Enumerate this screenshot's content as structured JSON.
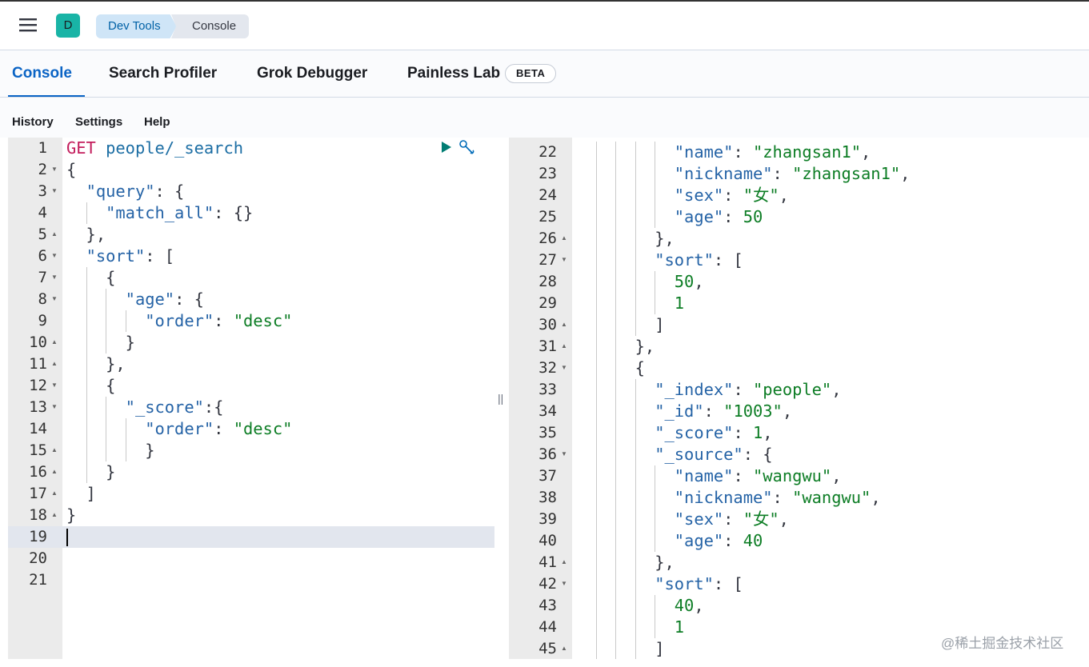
{
  "header": {
    "avatar": "D",
    "breadcrumbs": [
      "Dev Tools",
      "Console"
    ]
  },
  "tabs": {
    "items": [
      "Console",
      "Search Profiler",
      "Grok Debugger",
      "Painless Lab"
    ],
    "badge": "BETA",
    "active": 0
  },
  "menu": [
    "History",
    "Settings",
    "Help"
  ],
  "request": {
    "lines": [
      {
        "n": 1,
        "text": "GET people/_search"
      },
      {
        "n": 2,
        "text": "{",
        "fold": "open"
      },
      {
        "n": 3,
        "text": "  \"query\": {",
        "fold": "open"
      },
      {
        "n": 4,
        "text": "    \"match_all\": {}"
      },
      {
        "n": 5,
        "text": "  },",
        "fold": "close"
      },
      {
        "n": 6,
        "text": "  \"sort\": [",
        "fold": "open"
      },
      {
        "n": 7,
        "text": "    {",
        "fold": "open"
      },
      {
        "n": 8,
        "text": "      \"age\": {",
        "fold": "open"
      },
      {
        "n": 9,
        "text": "        \"order\": \"desc\""
      },
      {
        "n": 10,
        "text": "      }",
        "fold": "close"
      },
      {
        "n": 11,
        "text": "    },",
        "fold": "close"
      },
      {
        "n": 12,
        "text": "    {",
        "fold": "open"
      },
      {
        "n": 13,
        "text": "      \"_score\":{",
        "fold": "open"
      },
      {
        "n": 14,
        "text": "        \"order\": \"desc\""
      },
      {
        "n": 15,
        "text": "        }",
        "fold": "close"
      },
      {
        "n": 16,
        "text": "    }",
        "fold": "close"
      },
      {
        "n": 17,
        "text": "  ]",
        "fold": "close"
      },
      {
        "n": 18,
        "text": "}",
        "fold": "close"
      },
      {
        "n": 19,
        "active": true
      },
      {
        "n": 20
      },
      {
        "n": 21
      }
    ]
  },
  "response": {
    "lines": [
      {
        "n": 22,
        "text": "          \"name\": \"zhangsan1\","
      },
      {
        "n": 23,
        "text": "          \"nickname\": \"zhangsan1\","
      },
      {
        "n": 24,
        "text": "          \"sex\": \"女\","
      },
      {
        "n": 25,
        "text": "          \"age\": 50"
      },
      {
        "n": 26,
        "text": "        },",
        "fold": "close"
      },
      {
        "n": 27,
        "text": "        \"sort\": [",
        "fold": "open"
      },
      {
        "n": 28,
        "text": "          50,"
      },
      {
        "n": 29,
        "text": "          1"
      },
      {
        "n": 30,
        "text": "        ]",
        "fold": "close"
      },
      {
        "n": 31,
        "text": "      },",
        "fold": "close"
      },
      {
        "n": 32,
        "text": "      {",
        "fold": "open"
      },
      {
        "n": 33,
        "text": "        \"_index\": \"people\","
      },
      {
        "n": 34,
        "text": "        \"_id\": \"1003\","
      },
      {
        "n": 35,
        "text": "        \"_score\": 1,"
      },
      {
        "n": 36,
        "text": "        \"_source\": {",
        "fold": "open"
      },
      {
        "n": 37,
        "text": "          \"name\": \"wangwu\","
      },
      {
        "n": 38,
        "text": "          \"nickname\": \"wangwu\","
      },
      {
        "n": 39,
        "text": "          \"sex\": \"女\","
      },
      {
        "n": 40,
        "text": "          \"age\": 40"
      },
      {
        "n": 41,
        "text": "        },",
        "fold": "close"
      },
      {
        "n": 42,
        "text": "        \"sort\": [",
        "fold": "open"
      },
      {
        "n": 43,
        "text": "          40,"
      },
      {
        "n": 44,
        "text": "          1"
      },
      {
        "n": 45,
        "text": "        ]",
        "fold": "close"
      }
    ]
  },
  "watermark": "@稀土掘金技术社区"
}
